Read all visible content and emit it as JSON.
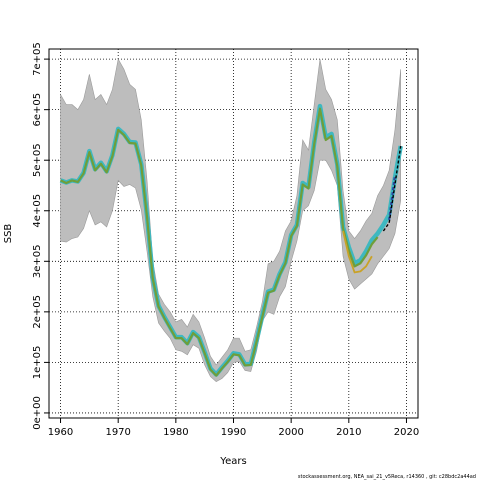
{
  "chart_data": {
    "type": "line",
    "title": "",
    "xlabel": "Years",
    "ylabel": "SSB",
    "xlim": [
      1958,
      2022
    ],
    "ylim": [
      -10000,
      720000
    ],
    "x_ticks": [
      1960,
      1970,
      1980,
      1990,
      2000,
      2010,
      2020
    ],
    "y_ticks": [
      0,
      100000,
      200000,
      300000,
      400000,
      500000,
      600000,
      700000
    ],
    "y_tick_labels": [
      "0e+00",
      "1e+05",
      "2e+05",
      "3e+05",
      "4e+05",
      "5e+05",
      "6e+05",
      "7e+05"
    ],
    "grid": true,
    "x": [
      1960,
      1961,
      1962,
      1963,
      1964,
      1965,
      1966,
      1967,
      1968,
      1969,
      1970,
      1971,
      1972,
      1973,
      1974,
      1975,
      1976,
      1977,
      1978,
      1979,
      1980,
      1981,
      1982,
      1983,
      1984,
      1985,
      1986,
      1987,
      1988,
      1989,
      1990,
      1991,
      1992,
      1993,
      1994,
      1995,
      1996,
      1997,
      1998,
      1999,
      2000,
      2001,
      2002,
      2003,
      2004,
      2005,
      2006,
      2007,
      2008,
      2009,
      2010,
      2011,
      2012,
      2013,
      2014,
      2015,
      2016,
      2017,
      2018,
      2019
    ],
    "confidence_band": {
      "upper": [
        630000,
        610000,
        610000,
        600000,
        620000,
        670000,
        620000,
        630000,
        610000,
        640000,
        700000,
        680000,
        650000,
        640000,
        580000,
        460000,
        300000,
        235000,
        215000,
        200000,
        180000,
        185000,
        170000,
        195000,
        180000,
        148000,
        112000,
        95000,
        110000,
        125000,
        148000,
        148000,
        122000,
        125000,
        170000,
        220000,
        295000,
        300000,
        320000,
        360000,
        380000,
        430000,
        540000,
        520000,
        610000,
        700000,
        640000,
        620000,
        580000,
        440000,
        360000,
        345000,
        360000,
        380000,
        395000,
        430000,
        450000,
        480000,
        560000,
        680000
      ],
      "lower": [
        340000,
        338000,
        345000,
        348000,
        365000,
        400000,
        372000,
        378000,
        368000,
        400000,
        460000,
        448000,
        452000,
        445000,
        402000,
        320000,
        230000,
        178000,
        162000,
        148000,
        125000,
        122000,
        115000,
        135000,
        128000,
        95000,
        72000,
        62000,
        68000,
        80000,
        100000,
        102000,
        84000,
        82000,
        122000,
        182000,
        200000,
        195000,
        230000,
        250000,
        300000,
        340000,
        400000,
        410000,
        440000,
        500000,
        500000,
        480000,
        450000,
        310000,
        265000,
        245000,
        255000,
        265000,
        275000,
        295000,
        310000,
        325000,
        355000,
        420000
      ]
    },
    "series": [
      {
        "color": "#3eb8c0",
        "values": [
          460000,
          456000,
          460000,
          458000,
          475000,
          518000,
          482000,
          495000,
          478000,
          510000,
          562000,
          552000,
          536000,
          535000,
          492000,
          390000,
          268000,
          212000,
          190000,
          170000,
          150000,
          150000,
          138000,
          160000,
          150000,
          120000,
          88000,
          76000,
          90000,
          103000,
          118000,
          116000,
          96000,
          97000,
          143000,
          192000,
          240000,
          244000,
          275000,
          298000,
          352000,
          372000,
          455000,
          447000,
          535000,
          607000,
          545000,
          552000,
          492000,
          368000,
          328000,
          296000,
          302000,
          320000,
          342000,
          355000,
          372000,
          392000,
          465000,
          528000
        ]
      },
      {
        "color": "#2c4a9e",
        "values": [
          null,
          null,
          null,
          null,
          null,
          null,
          null,
          null,
          null,
          null,
          null,
          null,
          null,
          null,
          null,
          null,
          null,
          null,
          null,
          null,
          null,
          null,
          null,
          null,
          null,
          null,
          null,
          null,
          null,
          null,
          null,
          null,
          null,
          null,
          null,
          null,
          null,
          null,
          null,
          null,
          null,
          null,
          null,
          null,
          null,
          null,
          null,
          null,
          null,
          null,
          null,
          null,
          null,
          null,
          null,
          null,
          null,
          382000,
          470000,
          null
        ]
      },
      {
        "color": "#000000",
        "values": [
          null,
          null,
          null,
          null,
          null,
          null,
          null,
          null,
          null,
          null,
          null,
          null,
          null,
          null,
          null,
          null,
          null,
          null,
          null,
          null,
          null,
          null,
          null,
          null,
          null,
          null,
          null,
          null,
          null,
          null,
          null,
          null,
          null,
          null,
          null,
          null,
          null,
          null,
          null,
          null,
          null,
          null,
          null,
          null,
          null,
          null,
          null,
          null,
          null,
          null,
          null,
          null,
          null,
          null,
          null,
          null,
          360000,
          376000,
          452000,
          528000
        ]
      },
      {
        "color": "#6f9e3a",
        "values": [
          460000,
          455000,
          460000,
          457000,
          474000,
          516000,
          480000,
          493000,
          476000,
          508000,
          560000,
          550000,
          534000,
          533000,
          490000,
          388000,
          266000,
          210000,
          188000,
          168000,
          148000,
          148000,
          136000,
          158000,
          148000,
          118000,
          86000,
          74000,
          88000,
          101000,
          116000,
          114000,
          94000,
          95000,
          141000,
          190000,
          238000,
          242000,
          273000,
          296000,
          350000,
          370000,
          452000,
          444000,
          532000,
          602000,
          540000,
          548000,
          488000,
          365000,
          322000,
          290000,
          296000,
          312000,
          334000,
          348000,
          null,
          null,
          null,
          null
        ]
      },
      {
        "color": "#c9a227",
        "values": [
          null,
          null,
          null,
          null,
          null,
          null,
          null,
          null,
          null,
          null,
          null,
          null,
          null,
          null,
          null,
          null,
          null,
          null,
          null,
          null,
          null,
          null,
          null,
          null,
          null,
          null,
          null,
          null,
          null,
          null,
          null,
          null,
          null,
          null,
          null,
          null,
          null,
          null,
          null,
          null,
          null,
          null,
          null,
          null,
          null,
          null,
          null,
          null,
          null,
          null,
          null,
          null,
          null,
          null,
          null,
          null,
          null,
          null,
          null,
          null
        ]
      },
      {
        "color": "#a8b830",
        "values": [
          null,
          null,
          null,
          null,
          null,
          null,
          null,
          null,
          null,
          null,
          null,
          null,
          null,
          null,
          null,
          null,
          null,
          null,
          null,
          null,
          null,
          null,
          null,
          null,
          null,
          null,
          null,
          null,
          null,
          null,
          null,
          null,
          null,
          null,
          null,
          null,
          null,
          null,
          null,
          null,
          null,
          null,
          null,
          null,
          null,
          null,
          null,
          null,
          null,
          null,
          null,
          null,
          null,
          null,
          null,
          null,
          null,
          null,
          null,
          null
        ]
      }
    ],
    "retro_tail": {
      "color": "#c9a227",
      "x": [
        2009,
        2010,
        2011,
        2012,
        2013,
        2014
      ],
      "values": [
        360000,
        310000,
        278000,
        280000,
        290000,
        310000
      ]
    }
  },
  "footer": "stockassessment.org, NEA_sai_21_v5Reca, r14360 , git: c28bdc2a44ad"
}
